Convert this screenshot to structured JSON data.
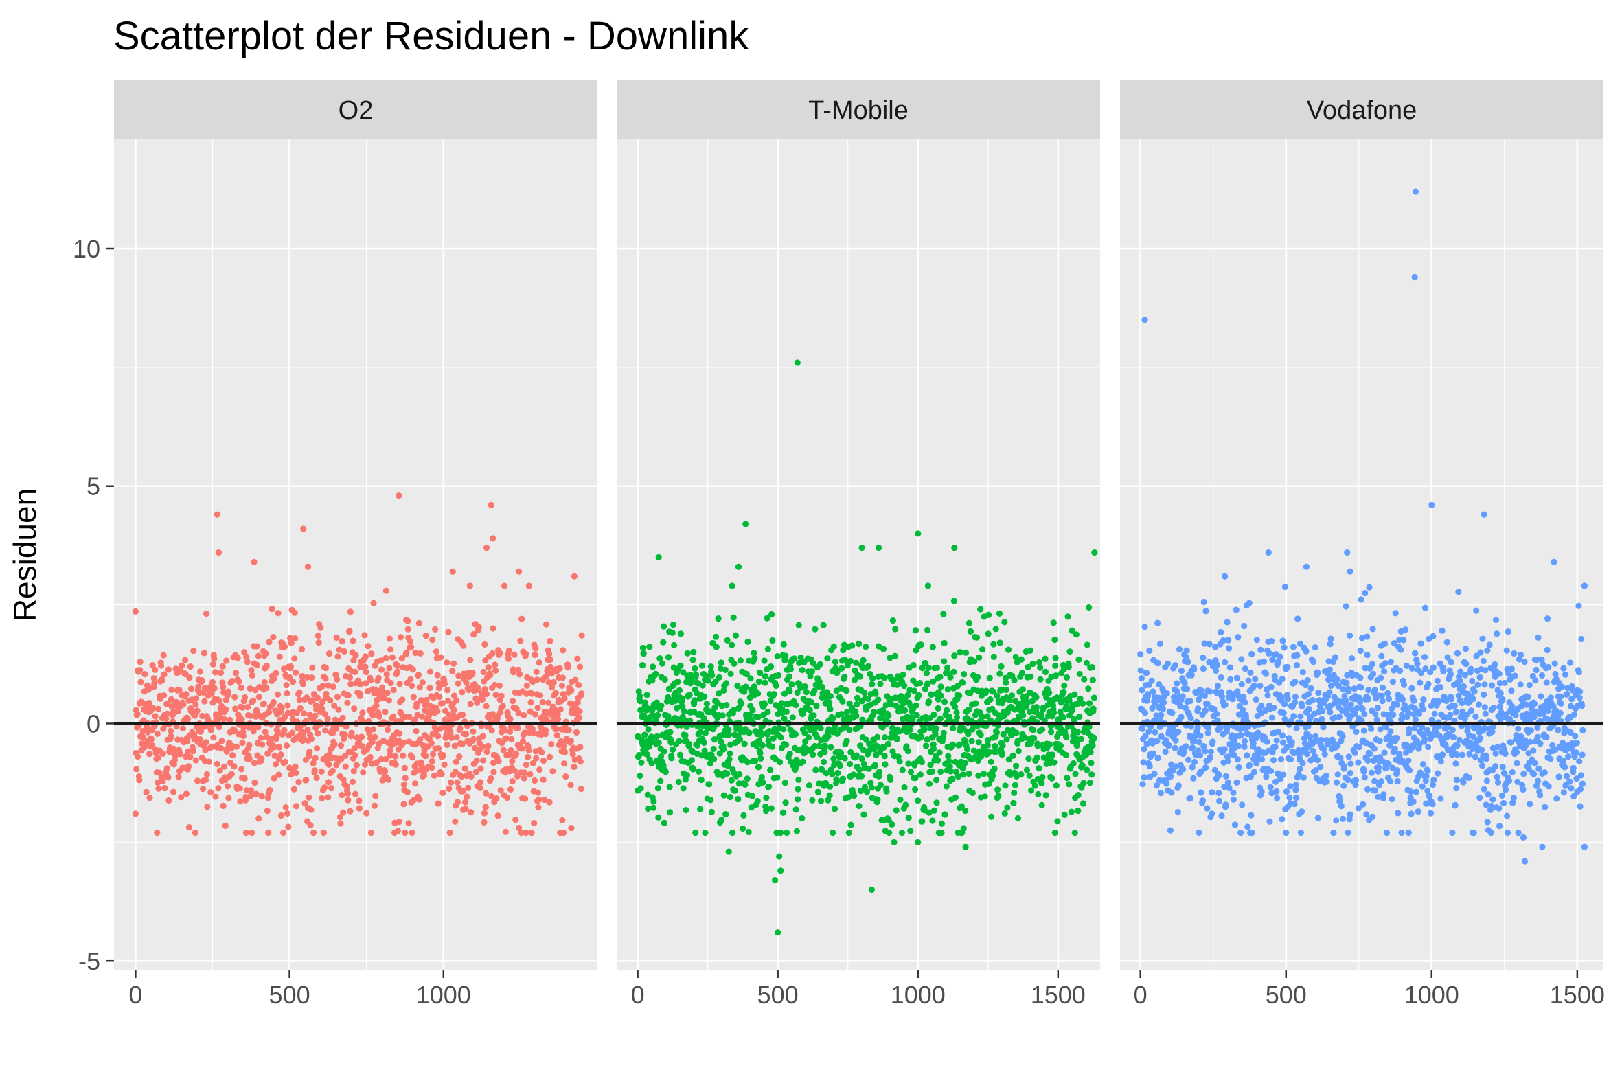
{
  "chart_data": {
    "type": "scatter",
    "title": "Scatterplot der Residuen - Downlink",
    "xlabel": "",
    "ylabel": "Residuen",
    "ylim": [
      -5.2,
      12.3
    ],
    "yticks": [
      -5,
      0,
      5,
      10
    ],
    "hline": 0,
    "grid": true,
    "legend": "none",
    "panels": [
      {
        "name": "O2",
        "color": "#F8766D",
        "xlim": [
          -70,
          1500
        ],
        "xticks": [
          0,
          500,
          1000
        ],
        "n_points": 1450,
        "outliers": [
          {
            "x": 265,
            "y": 4.4
          },
          {
            "x": 270,
            "y": 3.6
          },
          {
            "x": 385,
            "y": 3.4
          },
          {
            "x": 545,
            "y": 4.1
          },
          {
            "x": 560,
            "y": 3.3
          },
          {
            "x": 855,
            "y": 4.8
          },
          {
            "x": 1030,
            "y": 3.2
          },
          {
            "x": 1155,
            "y": 4.6
          },
          {
            "x": 1160,
            "y": 3.9
          },
          {
            "x": 1140,
            "y": 3.7
          },
          {
            "x": 1245,
            "y": 3.2
          },
          {
            "x": 1425,
            "y": 3.1
          },
          {
            "x": 70,
            "y": -2.3
          },
          {
            "x": 400,
            "y": -2.0
          },
          {
            "x": 1390,
            "y": -2.3
          },
          {
            "x": 1415,
            "y": -2.2
          },
          {
            "x": 0,
            "y": -1.9
          }
        ]
      },
      {
        "name": "T-Mobile",
        "color": "#00BA38",
        "xlim": [
          -75,
          1650
        ],
        "xticks": [
          0,
          500,
          1000,
          1500
        ],
        "n_points": 1630,
        "outliers": [
          {
            "x": 570,
            "y": 7.6
          },
          {
            "x": 385,
            "y": 4.2
          },
          {
            "x": 1000,
            "y": 4.0
          },
          {
            "x": 1130,
            "y": 3.7
          },
          {
            "x": 1630,
            "y": 3.6
          },
          {
            "x": 360,
            "y": 3.3
          },
          {
            "x": 800,
            "y": 3.7
          },
          {
            "x": 860,
            "y": 3.7
          },
          {
            "x": 75,
            "y": 3.5
          },
          {
            "x": 500,
            "y": -4.4
          },
          {
            "x": 835,
            "y": -3.5
          },
          {
            "x": 490,
            "y": -3.3
          },
          {
            "x": 505,
            "y": -2.8
          },
          {
            "x": 510,
            "y": -3.1
          },
          {
            "x": 1000,
            "y": -2.5
          },
          {
            "x": 915,
            "y": -2.5
          },
          {
            "x": 325,
            "y": -2.7
          },
          {
            "x": 1170,
            "y": -2.6
          }
        ]
      },
      {
        "name": "Vodafone",
        "color": "#619CFF",
        "xlim": [
          -70,
          1590
        ],
        "xticks": [
          0,
          500,
          1000,
          1500
        ],
        "n_points": 1520,
        "outliers": [
          {
            "x": 945,
            "y": 11.2
          },
          {
            "x": 942,
            "y": 9.4
          },
          {
            "x": 15,
            "y": 8.5
          },
          {
            "x": 1000,
            "y": 4.6
          },
          {
            "x": 1180,
            "y": 4.4
          },
          {
            "x": 440,
            "y": 3.6
          },
          {
            "x": 710,
            "y": 3.6
          },
          {
            "x": 1420,
            "y": 3.4
          },
          {
            "x": 570,
            "y": 3.3
          },
          {
            "x": 720,
            "y": 3.2
          },
          {
            "x": 290,
            "y": 3.1
          },
          {
            "x": 1525,
            "y": 2.9
          },
          {
            "x": 1320,
            "y": -2.9
          },
          {
            "x": 1525,
            "y": -2.6
          },
          {
            "x": 1315,
            "y": -2.4
          },
          {
            "x": 1380,
            "y": -2.6
          },
          {
            "x": 500,
            "y": -2.3
          },
          {
            "x": 1145,
            "y": -2.3
          }
        ]
      }
    ]
  }
}
